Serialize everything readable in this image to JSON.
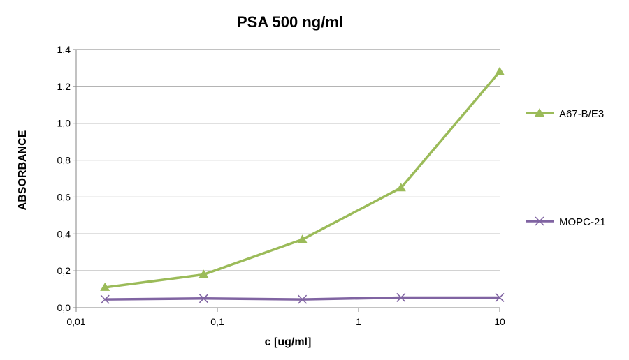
{
  "chart_data": {
    "type": "line",
    "title": "PSA 500 ng/ml",
    "xlabel": "c [ug/ml]",
    "ylabel": "ABSORBANCE",
    "x_scale": "log",
    "xlim": [
      0.01,
      10
    ],
    "ylim": [
      0,
      1.4
    ],
    "x_ticks": [
      "0,01",
      "0,1",
      "1",
      "10"
    ],
    "x_tick_values": [
      0.01,
      0.1,
      1,
      10
    ],
    "y_ticks": [
      "0,0",
      "0,2",
      "0,4",
      "0,6",
      "0,8",
      "1,0",
      "1,2",
      "1,4"
    ],
    "y_tick_values": [
      0,
      0.2,
      0.4,
      0.6,
      0.8,
      1.0,
      1.2,
      1.4
    ],
    "grid": true,
    "legend_position": "right",
    "series": [
      {
        "name": "A67-B/E3",
        "color": "#9bbb59",
        "marker": "triangle",
        "x": [
          0.016,
          0.08,
          0.4,
          2,
          10
        ],
        "y": [
          0.11,
          0.18,
          0.37,
          0.65,
          1.28
        ]
      },
      {
        "name": "MOPC-21",
        "color": "#8064a2",
        "marker": "x",
        "x": [
          0.016,
          0.08,
          0.4,
          2,
          10
        ],
        "y": [
          0.045,
          0.05,
          0.045,
          0.055,
          0.055
        ]
      }
    ]
  }
}
